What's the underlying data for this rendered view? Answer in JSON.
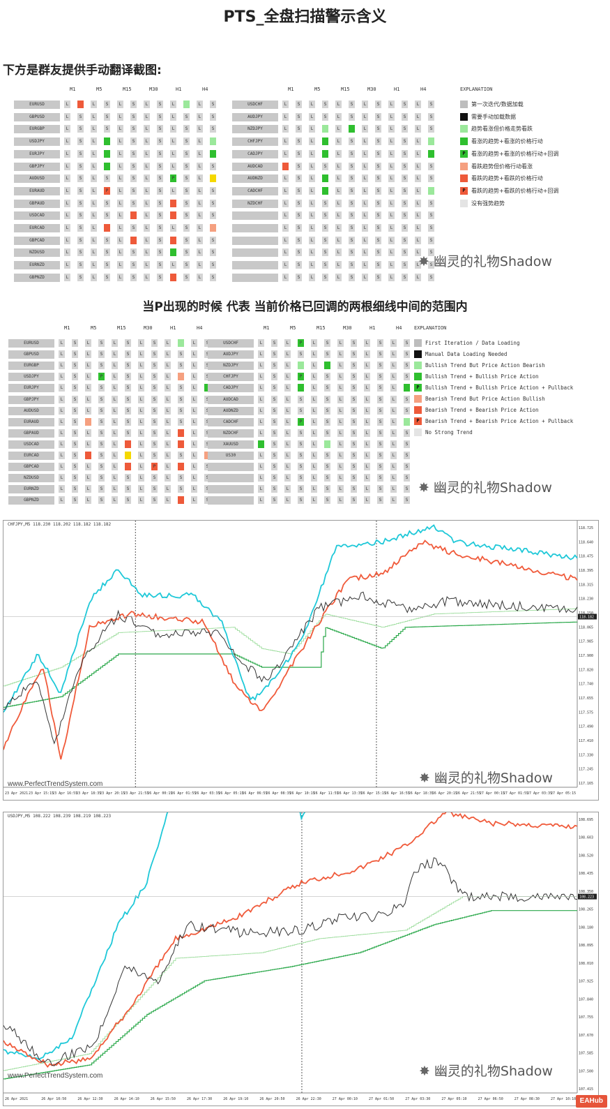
{
  "title": "PTS_全盘扫描警示含义",
  "subheading": "下方是群友提供手动翻译截图:",
  "caption": "当P出现的时候 代表 当前价格已回调的两根细线中间的范围内",
  "watermark": "幽灵的礼物Shadow",
  "colors": {
    "gray": "#bdbdbd",
    "black": "#111111",
    "lightgreen": "#9be89b",
    "green": "#2fbf2f",
    "salmon": "#f5a080",
    "red": "#ee5a3a",
    "nostrong": "#e4e4e4",
    "yellow": "#f5d800",
    "cell": "#d4d4d4"
  },
  "timeframes": [
    "M1",
    "M5",
    "M15",
    "M30",
    "H1",
    "H4"
  ],
  "explanation_title": "EXPLANATION",
  "scan1": {
    "left_pairs": [
      "EURUSD",
      "GBPUSD",
      "EURGBP",
      "USDJPY",
      "EURJPY",
      "GBPJPY",
      "AUDUSD",
      "EURAUD",
      "GBPAUD",
      "USDCAD",
      "EURCAD",
      "GBPCAD",
      "NZDUSD",
      "EURNZD",
      "GBPNZD"
    ],
    "right_pairs": [
      "USDCHF",
      "AUDJPY",
      "NZDJPY",
      "CHFJPY",
      "CADJPY",
      "AUDCAD",
      "AUDNZD",
      "CADCHF",
      "NZDCHF",
      "",
      "",
      "",
      "",
      "",
      ""
    ],
    "legend": [
      {
        "color": "gray",
        "mark": "",
        "text": "第一次迭代/数据加载"
      },
      {
        "color": "black",
        "mark": "",
        "text": "需要手动加载数据"
      },
      {
        "color": "lightgreen",
        "mark": "",
        "text": "趋势看涨但价格走势看跌"
      },
      {
        "color": "green",
        "mark": "",
        "text": "看涨的趋势+看涨的价格行动"
      },
      {
        "color": "green",
        "mark": "P",
        "text": "看涨的趋势+看涨的价格行动+回调"
      },
      {
        "color": "salmon",
        "mark": "",
        "text": "看跌趋势但价格行动看涨"
      },
      {
        "color": "red",
        "mark": "",
        "text": "看跌的趋势+看跌的价格行动"
      },
      {
        "color": "red",
        "mark": "P",
        "text": "看跌的趋势+看跌的价格行动+回调"
      },
      {
        "color": "nostrong",
        "mark": "",
        "text": "没有强势趋势"
      }
    ]
  },
  "scan2": {
    "left_pairs": [
      "EURUSD",
      "GBPUSD",
      "EURGBP",
      "USDJPY",
      "EURJPY",
      "GBPJPY",
      "AUDUSD",
      "EURAUD",
      "GBPAUD",
      "USDCAD",
      "EURCAD",
      "GBPCAD",
      "NZDUSD",
      "EURNZD",
      "GBPNZD"
    ],
    "right_pairs": [
      "USDCHF",
      "AUDJPY",
      "NZDJPY",
      "CHFJPY",
      "CADJPY",
      "AUDCAD",
      "AUDNZD",
      "CADCHF",
      "NZDCHF",
      "XAUUSD",
      "US30",
      "",
      "",
      "",
      ""
    ],
    "legend": [
      {
        "color": "gray",
        "mark": "",
        "text": "First Iteration / Data Loading"
      },
      {
        "color": "black",
        "mark": "",
        "text": "Manual Data Loading Needed"
      },
      {
        "color": "lightgreen",
        "mark": "",
        "text": "Bullish Trend But Price Action Bearish"
      },
      {
        "color": "green",
        "mark": "",
        "text": "Bullish Trend + Bullish Price Action"
      },
      {
        "color": "green",
        "mark": "P",
        "text": "Bullish Trend + Bullish Price Action + Pullback"
      },
      {
        "color": "salmon",
        "mark": "",
        "text": "Bearish Trend But Price Action Bullish"
      },
      {
        "color": "red",
        "mark": "",
        "text": "Bearish Trend + Bearish Price Action"
      },
      {
        "color": "red",
        "mark": "P",
        "text": "Bearish Trend + Bearish Price Action + Pullback"
      },
      {
        "color": "nostrong",
        "mark": "",
        "text": "No Strong Trend"
      }
    ]
  },
  "chart1": {
    "header": "CHFJPY,M5  118.230 118.202 118.182 118.182",
    "site": "www.PerfectTrendSystem.com",
    "price_labels": [
      "118.725",
      "118.640",
      "118.475",
      "118.395",
      "118.315",
      "118.230",
      "118.150",
      "118.065",
      "117.985",
      "117.900",
      "117.820",
      "117.740",
      "117.655",
      "117.575",
      "117.490",
      "117.410",
      "117.330",
      "117.245",
      "117.165"
    ],
    "last_price": "118.182",
    "time_labels": [
      "23 Apr 2021",
      "23 Apr 15:15",
      "23 Apr 16:55",
      "23 Apr 18:35",
      "23 Apr 20:15",
      "23 Apr 21:55",
      "26 Apr 00:15",
      "26 Apr 01:55",
      "26 Apr 03:35",
      "26 Apr 05:15",
      "26 Apr 06:55",
      "26 Apr 08:35",
      "26 Apr 10:15",
      "26 Apr 11:55",
      "26 Apr 13:35",
      "26 Apr 15:15",
      "26 Apr 16:55",
      "26 Apr 18:35",
      "26 Apr 20:15",
      "26 Apr 21:55",
      "27 Apr 00:15",
      "27 Apr 01:55",
      "27 Apr 03:35",
      "27 Apr 05:15"
    ]
  },
  "chart2": {
    "header": "USDJPY,M5  108.222 108.239 108.219 108.223",
    "site": "www.PerfectTrendSystem.com",
    "price_labels": [
      "108.695",
      "108.603",
      "108.520",
      "108.435",
      "108.350",
      "108.265",
      "108.180",
      "108.095",
      "108.010",
      "107.925",
      "107.840",
      "107.755",
      "107.670",
      "107.585",
      "107.500",
      "107.415"
    ],
    "last_price": "108.223",
    "time_labels": [
      "26 Apr 2021",
      "26 Apr 10:50",
      "26 Apr 12:30",
      "26 Apr 14:10",
      "26 Apr 15:50",
      "26 Apr 17:30",
      "26 Apr 19:10",
      "26 Apr 20:50",
      "26 Apr 22:30",
      "27 Apr 00:10",
      "27 Apr 01:50",
      "27 Apr 03:30",
      "27 Apr 05:10",
      "27 Apr 06:50",
      "27 Apr 08:30",
      "27 Apr 10:10"
    ]
  },
  "eahub_label": "EAHub"
}
